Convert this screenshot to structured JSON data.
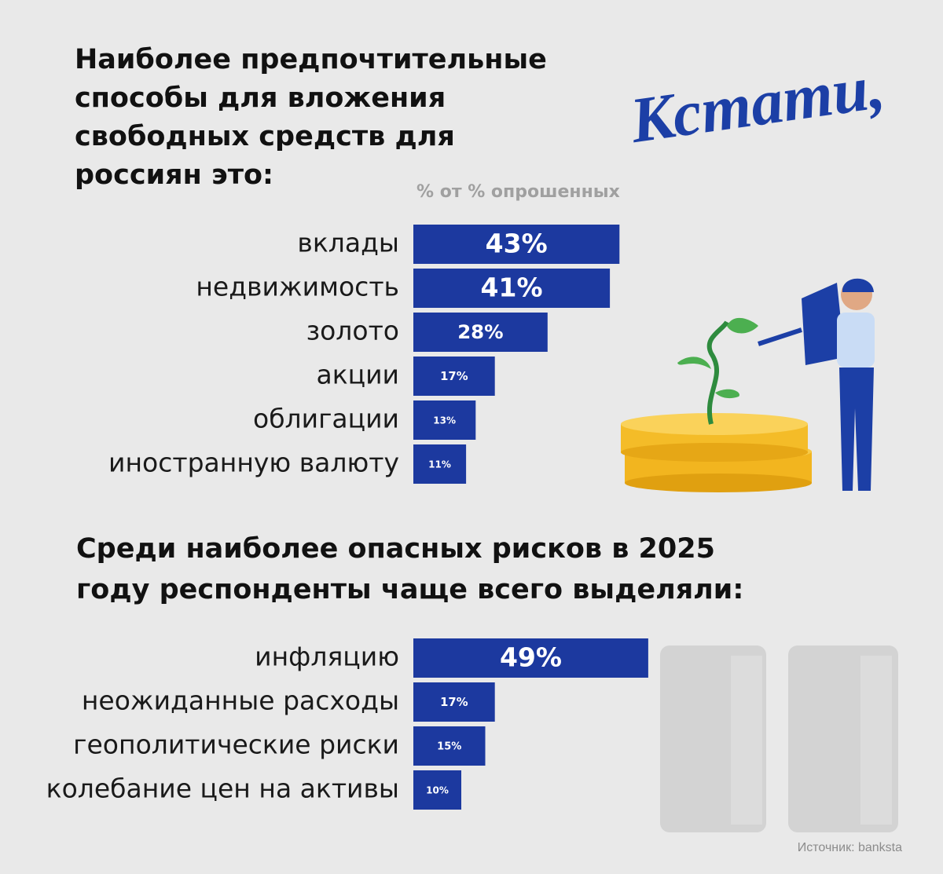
{
  "brand": "Кстати,",
  "source": "Источник: banksta",
  "chart_data": [
    {
      "type": "bar",
      "orientation": "horizontal",
      "title": [
        "Наиболее предпочтительные",
        "способы для вложения",
        "свободных средств для",
        "россиян это:"
      ],
      "subtitle": "% от % опрошенных",
      "categories": [
        "вклады",
        "недвижимость",
        "золото",
        "акции",
        "облигации",
        "иностранную валюту"
      ],
      "values": [
        43,
        41,
        28,
        17,
        13,
        11
      ],
      "value_labels": [
        "43%",
        "41%",
        "28%",
        "17%",
        "13%",
        "11%"
      ],
      "color": "#1c399f"
    },
    {
      "type": "bar",
      "orientation": "horizontal",
      "title": [
        "Среди наиболее опасных рисков в 2025",
        "году респонденты чаще всего выделяли:"
      ],
      "categories": [
        "инфляцию",
        "неожиданные расходы",
        "геополитические риски",
        "колебание цен на активы"
      ],
      "values": [
        49,
        17,
        15,
        10
      ],
      "value_labels": [
        "49%",
        "17%",
        "15%",
        "10%"
      ],
      "color": "#1c399f"
    }
  ]
}
